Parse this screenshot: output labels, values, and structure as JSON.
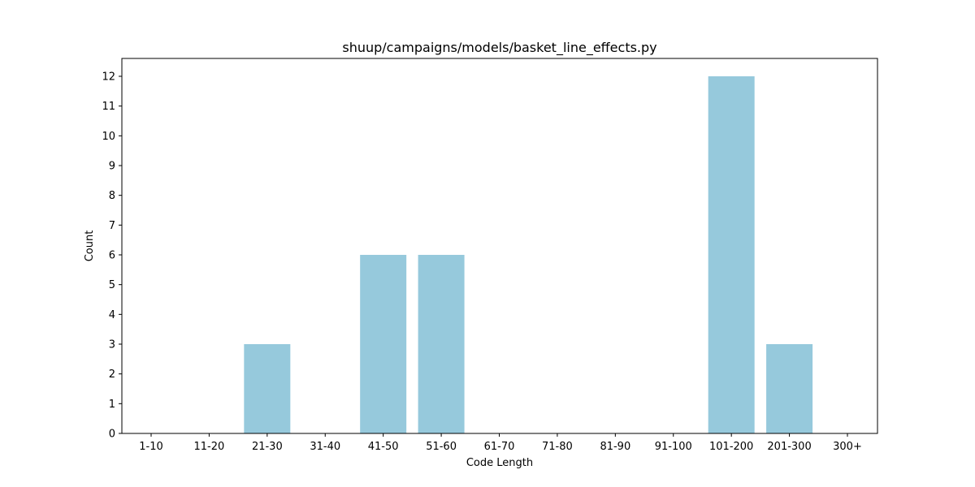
{
  "chart_data": {
    "type": "bar",
    "title": "shuup/campaigns/models/basket_line_effects.py",
    "xlabel": "Code Length",
    "ylabel": "Count",
    "categories": [
      "1-10",
      "11-20",
      "21-30",
      "31-40",
      "41-50",
      "51-60",
      "61-70",
      "71-80",
      "81-90",
      "91-100",
      "101-200",
      "201-300",
      "300+"
    ],
    "values": [
      0,
      0,
      3,
      0,
      6,
      6,
      0,
      0,
      0,
      0,
      12,
      3,
      0
    ],
    "ylim": [
      0,
      12.6
    ],
    "yticks": [
      0,
      1,
      2,
      3,
      4,
      5,
      6,
      7,
      8,
      9,
      10,
      11,
      12
    ],
    "grid": false,
    "legend": "none",
    "bar_color": "#96c9dc"
  }
}
